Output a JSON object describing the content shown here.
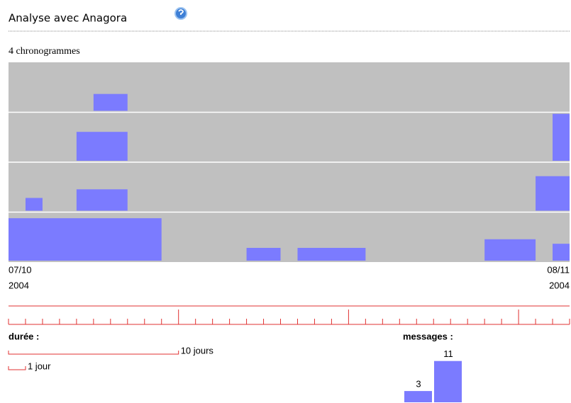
{
  "header": {
    "title": "Analyse avec Anagora"
  },
  "summary": "4 chronogrammes",
  "timeline": {
    "start": {
      "date": "07/10",
      "year": "2004"
    },
    "end": {
      "date": "08/11",
      "year": "2004"
    },
    "xlim": [
      0,
      33
    ],
    "rows": [
      {
        "bars": [
          {
            "start": 5,
            "end": 7,
            "messages": 4.5
          }
        ]
      },
      {
        "bars": [
          {
            "start": 4,
            "end": 7,
            "messages": 7.7
          },
          {
            "start": 32,
            "end": 33,
            "messages": 12.5
          }
        ]
      },
      {
        "bars": [
          {
            "start": 1,
            "end": 2,
            "messages": 3.4
          },
          {
            "start": 4,
            "end": 7,
            "messages": 5.7
          },
          {
            "start": 31,
            "end": 33,
            "messages": 9.2
          }
        ]
      },
      {
        "bars": [
          {
            "start": 0,
            "end": 9,
            "messages": 11.3
          },
          {
            "start": 14,
            "end": 16,
            "messages": 3.4
          },
          {
            "start": 17,
            "end": 21,
            "messages": 3.4
          },
          {
            "start": 28,
            "end": 31,
            "messages": 5.7
          },
          {
            "start": 32,
            "end": 33,
            "messages": 4.5
          }
        ]
      }
    ]
  },
  "scale": {
    "title": "durée :",
    "long": {
      "days": 10,
      "label": "10 jours"
    },
    "short": {
      "days": 1,
      "label": "1 jour"
    }
  },
  "messages_legend": {
    "title": "messages :",
    "items": [
      3,
      11
    ]
  }
}
